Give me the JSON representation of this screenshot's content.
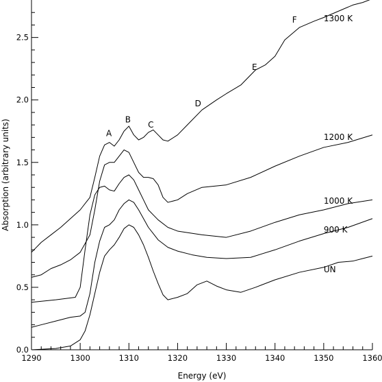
{
  "chart_data": {
    "type": "line",
    "title": "",
    "xlabel": "Energy (eV)",
    "ylabel": "Absorption (arbitrary units)",
    "xlim": [
      1290,
      1360
    ],
    "ylim": [
      0,
      2.8
    ],
    "grid": false,
    "legend": "none",
    "x_ticks": [
      {
        "value": 1290,
        "label": "1290"
      },
      {
        "value": 1300,
        "label": "1300"
      },
      {
        "value": 1310,
        "label": "1310"
      },
      {
        "value": 1320,
        "label": "1320"
      },
      {
        "value": 1330,
        "label": "1330"
      },
      {
        "value": 1340,
        "label": "1340"
      },
      {
        "value": 1350,
        "label": "1350"
      },
      {
        "value": 1360,
        "label": "1360"
      }
    ],
    "y_ticks": [
      {
        "value": 0.0,
        "label": "0.0"
      },
      {
        "value": 0.5,
        "label": "0.5"
      },
      {
        "value": 1.0,
        "label": "1.0"
      },
      {
        "value": 1.5,
        "label": "1.5"
      },
      {
        "value": 2.0,
        "label": "2.0"
      },
      {
        "value": 2.5,
        "label": "2.5"
      }
    ],
    "series": [
      {
        "name": "UN",
        "label_at": [
          1350,
          0.62
        ],
        "points": [
          [
            1290,
            0.0
          ],
          [
            1295,
            0.01
          ],
          [
            1298,
            0.03
          ],
          [
            1300,
            0.08
          ],
          [
            1301,
            0.15
          ],
          [
            1302,
            0.28
          ],
          [
            1303,
            0.45
          ],
          [
            1304,
            0.62
          ],
          [
            1305,
            0.75
          ],
          [
            1306,
            0.8
          ],
          [
            1307,
            0.84
          ],
          [
            1308,
            0.9
          ],
          [
            1309,
            0.97
          ],
          [
            1310,
            1.0
          ],
          [
            1311,
            0.98
          ],
          [
            1312,
            0.92
          ],
          [
            1313,
            0.84
          ],
          [
            1314,
            0.74
          ],
          [
            1315,
            0.63
          ],
          [
            1316,
            0.53
          ],
          [
            1317,
            0.44
          ],
          [
            1318,
            0.4
          ],
          [
            1320,
            0.42
          ],
          [
            1322,
            0.45
          ],
          [
            1324,
            0.52
          ],
          [
            1326,
            0.55
          ],
          [
            1328,
            0.51
          ],
          [
            1330,
            0.48
          ],
          [
            1333,
            0.46
          ],
          [
            1336,
            0.5
          ],
          [
            1340,
            0.56
          ],
          [
            1345,
            0.62
          ],
          [
            1350,
            0.66
          ],
          [
            1353,
            0.7
          ],
          [
            1356,
            0.71
          ],
          [
            1358,
            0.73
          ],
          [
            1360,
            0.75
          ]
        ]
      },
      {
        "name": "900 K",
        "label_at": [
          1350,
          0.94
        ],
        "points": [
          [
            1290,
            0.18
          ],
          [
            1292,
            0.2
          ],
          [
            1295,
            0.23
          ],
          [
            1298,
            0.26
          ],
          [
            1300,
            0.27
          ],
          [
            1301,
            0.3
          ],
          [
            1302,
            0.45
          ],
          [
            1303,
            0.7
          ],
          [
            1304,
            0.87
          ],
          [
            1305,
            0.98
          ],
          [
            1306,
            1.0
          ],
          [
            1307,
            1.04
          ],
          [
            1308,
            1.12
          ],
          [
            1309,
            1.17
          ],
          [
            1310,
            1.2
          ],
          [
            1311,
            1.18
          ],
          [
            1312,
            1.12
          ],
          [
            1313,
            1.05
          ],
          [
            1314,
            0.98
          ],
          [
            1315,
            0.93
          ],
          [
            1316,
            0.88
          ],
          [
            1318,
            0.82
          ],
          [
            1320,
            0.79
          ],
          [
            1323,
            0.76
          ],
          [
            1326,
            0.74
          ],
          [
            1330,
            0.73
          ],
          [
            1335,
            0.74
          ],
          [
            1340,
            0.8
          ],
          [
            1345,
            0.87
          ],
          [
            1350,
            0.93
          ],
          [
            1355,
            0.98
          ],
          [
            1360,
            1.05
          ]
        ]
      },
      {
        "name": "1000 K",
        "label_at": [
          1350,
          1.17
        ],
        "points": [
          [
            1290,
            0.38
          ],
          [
            1295,
            0.4
          ],
          [
            1299,
            0.42
          ],
          [
            1300,
            0.5
          ],
          [
            1301,
            0.8
          ],
          [
            1302,
            1.08
          ],
          [
            1303,
            1.24
          ],
          [
            1304,
            1.3
          ],
          [
            1305,
            1.31
          ],
          [
            1306,
            1.28
          ],
          [
            1307,
            1.27
          ],
          [
            1308,
            1.33
          ],
          [
            1309,
            1.38
          ],
          [
            1310,
            1.4
          ],
          [
            1311,
            1.36
          ],
          [
            1312,
            1.28
          ],
          [
            1313,
            1.2
          ],
          [
            1314,
            1.12
          ],
          [
            1315,
            1.08
          ],
          [
            1316,
            1.04
          ],
          [
            1318,
            0.98
          ],
          [
            1320,
            0.95
          ],
          [
            1325,
            0.92
          ],
          [
            1330,
            0.9
          ],
          [
            1335,
            0.95
          ],
          [
            1340,
            1.02
          ],
          [
            1345,
            1.08
          ],
          [
            1350,
            1.12
          ],
          [
            1355,
            1.17
          ],
          [
            1360,
            1.2
          ]
        ]
      },
      {
        "name": "1200 K",
        "label_at": [
          1350,
          1.68
        ],
        "points": [
          [
            1290,
            0.58
          ],
          [
            1292,
            0.6
          ],
          [
            1294,
            0.65
          ],
          [
            1296,
            0.68
          ],
          [
            1298,
            0.72
          ],
          [
            1300,
            0.78
          ],
          [
            1302,
            0.92
          ],
          [
            1303,
            1.12
          ],
          [
            1304,
            1.35
          ],
          [
            1305,
            1.48
          ],
          [
            1306,
            1.5
          ],
          [
            1307,
            1.5
          ],
          [
            1308,
            1.55
          ],
          [
            1309,
            1.6
          ],
          [
            1310,
            1.58
          ],
          [
            1311,
            1.5
          ],
          [
            1312,
            1.42
          ],
          [
            1313,
            1.38
          ],
          [
            1314,
            1.38
          ],
          [
            1315,
            1.37
          ],
          [
            1316,
            1.32
          ],
          [
            1317,
            1.22
          ],
          [
            1318,
            1.18
          ],
          [
            1320,
            1.2
          ],
          [
            1322,
            1.25
          ],
          [
            1325,
            1.3
          ],
          [
            1330,
            1.32
          ],
          [
            1335,
            1.38
          ],
          [
            1340,
            1.47
          ],
          [
            1345,
            1.55
          ],
          [
            1350,
            1.62
          ],
          [
            1355,
            1.66
          ],
          [
            1360,
            1.72
          ]
        ]
      },
      {
        "name": "1300 K",
        "label_at": [
          1350,
          2.63
        ],
        "points": [
          [
            1290,
            0.78
          ],
          [
            1292,
            0.86
          ],
          [
            1294,
            0.92
          ],
          [
            1296,
            0.98
          ],
          [
            1298,
            1.05
          ],
          [
            1300,
            1.12
          ],
          [
            1302,
            1.22
          ],
          [
            1303,
            1.38
          ],
          [
            1304,
            1.55
          ],
          [
            1305,
            1.64
          ],
          [
            1306,
            1.66
          ],
          [
            1307,
            1.63
          ],
          [
            1308,
            1.68
          ],
          [
            1309,
            1.75
          ],
          [
            1310,
            1.79
          ],
          [
            1311,
            1.72
          ],
          [
            1312,
            1.68
          ],
          [
            1313,
            1.7
          ],
          [
            1314,
            1.74
          ],
          [
            1315,
            1.76
          ],
          [
            1316,
            1.72
          ],
          [
            1317,
            1.68
          ],
          [
            1318,
            1.67
          ],
          [
            1320,
            1.72
          ],
          [
            1322,
            1.8
          ],
          [
            1325,
            1.92
          ],
          [
            1328,
            2.0
          ],
          [
            1330,
            2.05
          ],
          [
            1333,
            2.12
          ],
          [
            1336,
            2.24
          ],
          [
            1338,
            2.28
          ],
          [
            1340,
            2.35
          ],
          [
            1342,
            2.48
          ],
          [
            1345,
            2.58
          ],
          [
            1348,
            2.63
          ],
          [
            1350,
            2.66
          ],
          [
            1353,
            2.71
          ],
          [
            1356,
            2.76
          ],
          [
            1358,
            2.78
          ],
          [
            1360,
            2.81
          ]
        ]
      }
    ],
    "annotations": [
      {
        "label": "A",
        "x": 1305.9,
        "y": 1.71
      },
      {
        "label": "B",
        "x": 1309.8,
        "y": 1.82
      },
      {
        "label": "C",
        "x": 1314.5,
        "y": 1.78
      },
      {
        "label": "D",
        "x": 1324.2,
        "y": 1.95
      },
      {
        "label": "E",
        "x": 1335.8,
        "y": 2.24
      },
      {
        "label": "F",
        "x": 1344.0,
        "y": 2.62
      }
    ]
  }
}
